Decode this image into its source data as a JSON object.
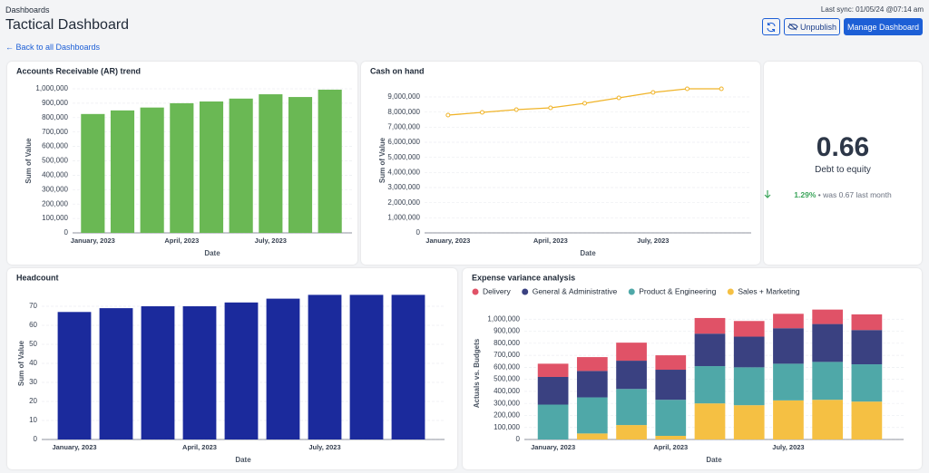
{
  "header": {
    "breadcrumb": "Dashboards",
    "title": "Tactical Dashboard",
    "back": "← Back to all Dashboards",
    "last_sync": "Last sync: 01/05/24 @07:14 am",
    "unpublish": "Unpublish",
    "manage": "Manage Dashboard"
  },
  "kpi": {
    "value": 0.66,
    "label": "Debt to equity",
    "change": "1.29%",
    "note": "• was 0.67 last month"
  },
  "chart_data": [
    {
      "type": "bar",
      "title": "Accounts Receivable (AR) trend",
      "x_label": "Date",
      "y_label": "Sum of Value",
      "color": "#6ab854",
      "grid": true,
      "categories": [
        "January, 2023",
        null,
        null,
        "April, 2023",
        null,
        null,
        "July, 2023",
        null,
        null
      ],
      "values": [
        825000,
        850000,
        870000,
        900000,
        912000,
        932000,
        962000,
        943000,
        994000
      ],
      "ylim": [
        0,
        1000000
      ],
      "yticks": [
        0,
        {
          "value": 100000,
          "label": "100,000"
        },
        {
          "value": 200000,
          "label": "200,000"
        },
        {
          "value": 300000,
          "label": "300,000"
        },
        {
          "value": 400000,
          "label": "400,000"
        },
        {
          "value": 500000,
          "label": "500,000"
        },
        {
          "value": 600000,
          "label": "600,000"
        },
        {
          "value": 700000,
          "label": "700,000"
        },
        {
          "value": 800000,
          "label": "800,000"
        },
        {
          "value": 900000,
          "label": "900,000"
        },
        {
          "value": 1000000,
          "label": "1,000,000"
        }
      ]
    },
    {
      "type": "line",
      "title": "Cash on hand",
      "x_label": "Date",
      "y_label": "Sum of Value",
      "color": "#f0b429",
      "grid": true,
      "categories": [
        "January, 2023",
        null,
        null,
        "April, 2023",
        null,
        null,
        "July, 2023",
        null,
        null
      ],
      "values": [
        7800000,
        7980000,
        8160000,
        8280000,
        8580000,
        8940000,
        9300000,
        9540000,
        9540000
      ],
      "ylim": [
        0,
        9600000
      ],
      "yticks": [
        0,
        {
          "value": 1000000,
          "label": "1,000,000"
        },
        {
          "value": 2000000,
          "label": "2,000,000"
        },
        {
          "value": 3000000,
          "label": "3,000,000"
        },
        {
          "value": 4000000,
          "label": "4,000,000"
        },
        {
          "value": 5000000,
          "label": "5,000,000"
        },
        {
          "value": 6000000,
          "label": "6,000,000"
        },
        {
          "value": 7000000,
          "label": "7,000,000"
        },
        {
          "value": 8000000,
          "label": "8,000,000"
        },
        {
          "value": 9000000,
          "label": "9,000,000"
        }
      ]
    },
    {
      "type": "bar",
      "title": "Headcount",
      "x_label": "Date",
      "y_label": "Sum of Value",
      "color": "#1b2a9c",
      "grid": true,
      "categories": [
        "January, 2023",
        null,
        null,
        "April, 2023",
        null,
        null,
        "July, 2023",
        null,
        null
      ],
      "values": [
        67,
        69,
        70,
        70,
        72,
        74,
        76,
        76,
        76
      ],
      "ylim": [
        0,
        80
      ],
      "yticks": [
        0,
        10,
        20,
        30,
        40,
        50,
        60,
        70
      ]
    },
    {
      "type": "bar",
      "stacked": true,
      "title": "Expense variance analysis",
      "x_label": "Date",
      "y_label": "Actuals vs. Budgets",
      "grid": true,
      "categories": [
        "January, 2023",
        null,
        null,
        "April, 2023",
        null,
        null,
        "July, 2023",
        null,
        null
      ],
      "series": [
        {
          "name": "Delivery",
          "color": "#e05267",
          "values": [
            110000,
            115000,
            150000,
            120000,
            130000,
            130000,
            120000,
            120000,
            130000
          ]
        },
        {
          "name": "General & Administrative",
          "color": "#3a4181",
          "values": [
            230000,
            220000,
            235000,
            250000,
            270000,
            255000,
            295000,
            315000,
            285000
          ]
        },
        {
          "name": "Product & Engineering",
          "color": "#4fa8a8",
          "values": [
            290000,
            300000,
            300000,
            300000,
            310000,
            315000,
            305000,
            315000,
            310000
          ]
        },
        {
          "name": "Sales + Marketing",
          "color": "#f5c043",
          "values": [
            0,
            50000,
            120000,
            30000,
            300000,
            285000,
            325000,
            330000,
            315000
          ]
        }
      ],
      "ylim": [
        0,
        1100000
      ],
      "yticks": [
        0,
        {
          "value": 100000,
          "label": "100,000"
        },
        {
          "value": 200000,
          "label": "200,000"
        },
        {
          "value": 300000,
          "label": "300,000"
        },
        {
          "value": 400000,
          "label": "400,000"
        },
        {
          "value": 500000,
          "label": "500,000"
        },
        {
          "value": 600000,
          "label": "600,000"
        },
        {
          "value": 700000,
          "label": "700,000"
        },
        {
          "value": 800000,
          "label": "800,000"
        },
        {
          "value": 900000,
          "label": "900,000"
        },
        {
          "value": 1000000,
          "label": "1,000,000"
        }
      ]
    }
  ]
}
